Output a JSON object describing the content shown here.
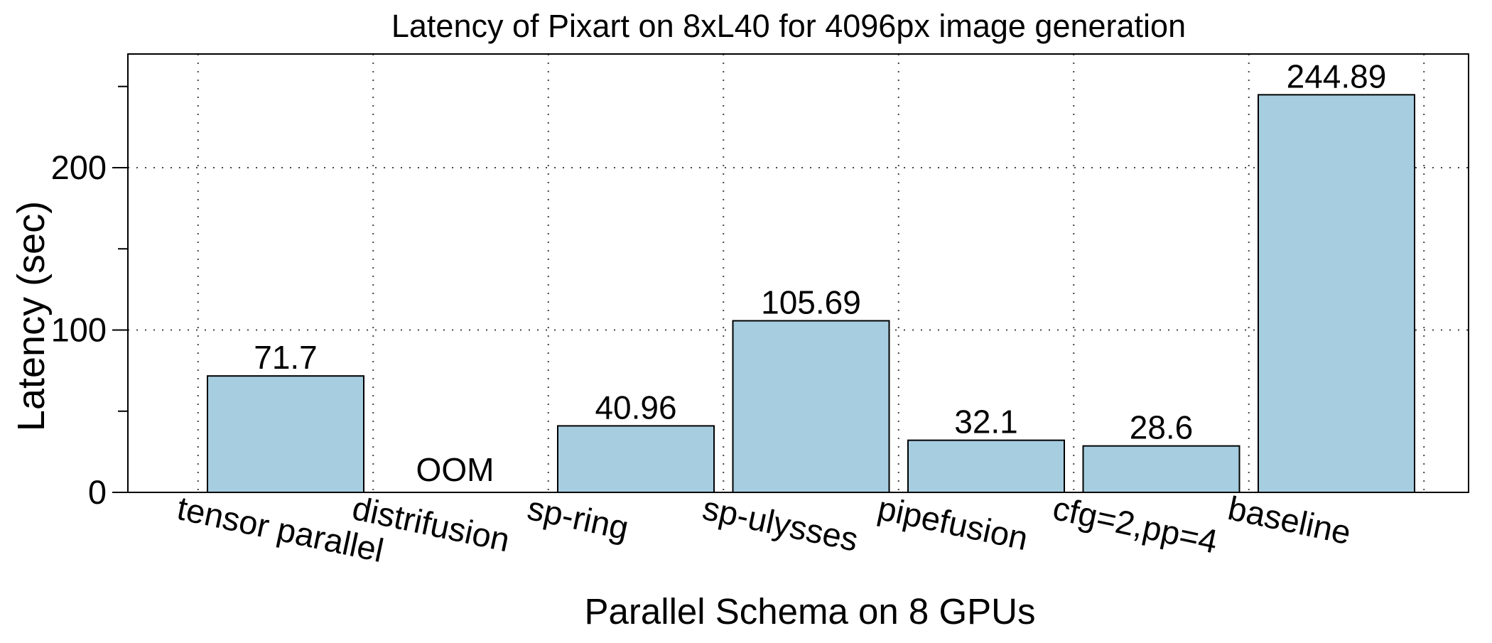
{
  "chart_data": {
    "type": "bar",
    "title": "Latency of Pixart on 8xL40 for 4096px image generation",
    "xlabel": "Parallel Schema on 8 GPUs",
    "ylabel": "Latency (sec)",
    "categories": [
      "tensor parallel",
      "distrifusion",
      "sp-ring",
      "sp-ulysses",
      "pipefusion",
      "cfg=2,pp=4",
      "baseline"
    ],
    "values": [
      71.7,
      null,
      40.96,
      105.69,
      32.1,
      28.6,
      244.89
    ],
    "value_labels": [
      "71.7",
      "OOM",
      "40.96",
      "105.69",
      "32.1",
      "28.6",
      "244.89"
    ],
    "ylim": [
      0,
      270
    ],
    "major_ticks": [
      0,
      100,
      200
    ],
    "minor_ticks": [
      50,
      150,
      250
    ],
    "tick_labels": [
      "0",
      "100",
      "200"
    ],
    "grid": "dotted",
    "bar_color": "#a6cde0",
    "bar_edge_color": "#000000"
  }
}
